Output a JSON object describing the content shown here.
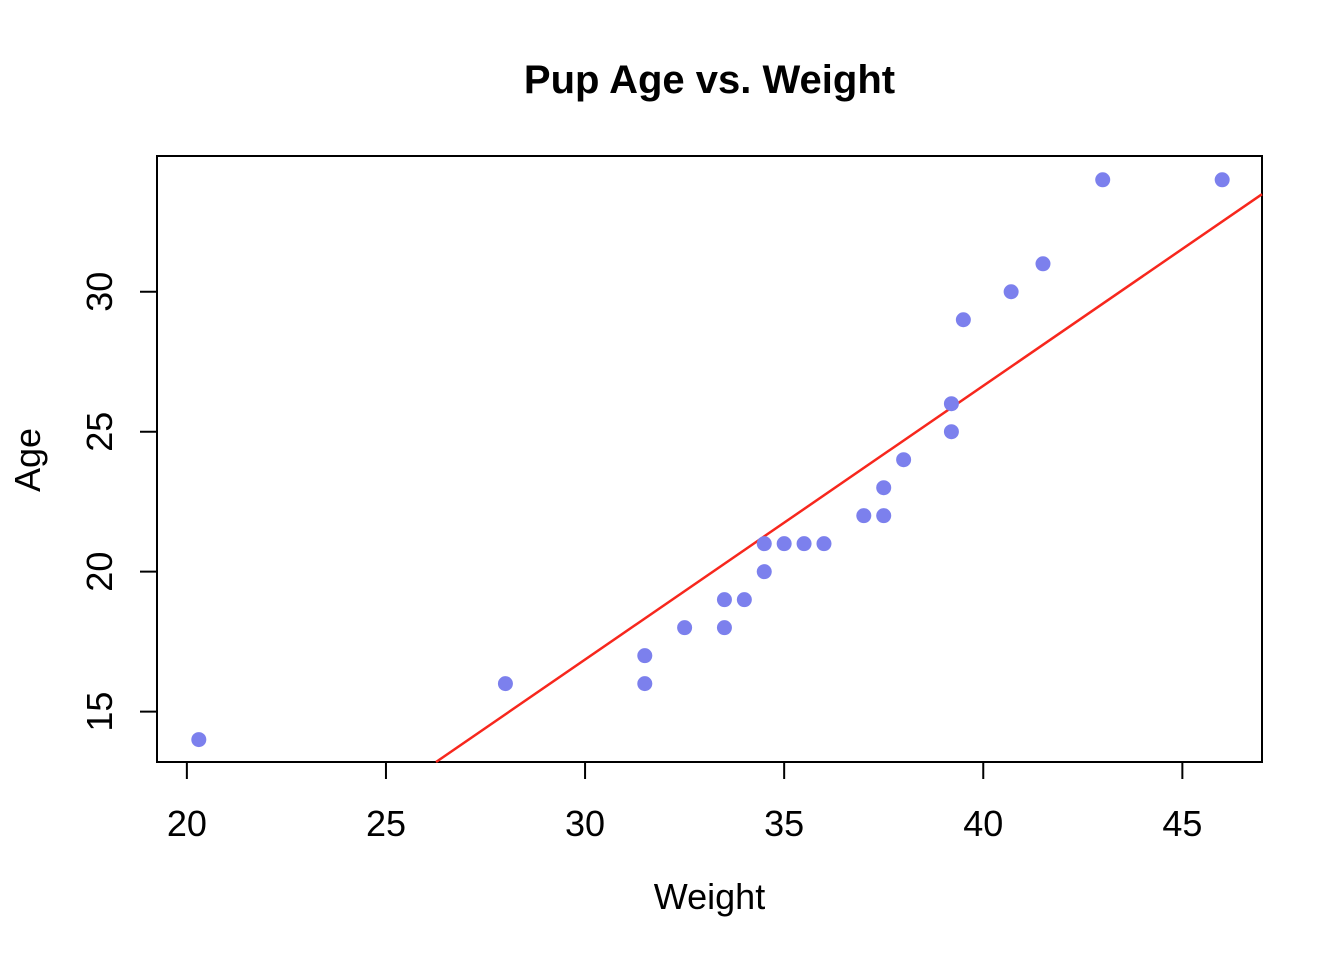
{
  "figure": {
    "background": "#ffffff",
    "axis_color": "#000000"
  },
  "chart_data": {
    "type": "scatter",
    "title": "Pup Age vs. Weight",
    "xlabel": "Weight",
    "ylabel": "Age",
    "xlim": [
      19.25,
      47.0
    ],
    "ylim": [
      13.2,
      34.85
    ],
    "xticks": [
      20,
      25,
      30,
      35,
      40,
      45
    ],
    "yticks": [
      15,
      20,
      25,
      30
    ],
    "grid": false,
    "point_color": "#7C80ED",
    "line_color": "#F7271D",
    "points": [
      [
        20.3,
        14
      ],
      [
        28.0,
        16
      ],
      [
        31.5,
        16
      ],
      [
        31.5,
        17
      ],
      [
        32.5,
        18
      ],
      [
        33.5,
        18
      ],
      [
        33.5,
        19
      ],
      [
        34.0,
        19
      ],
      [
        34.5,
        20
      ],
      [
        34.5,
        21
      ],
      [
        35.0,
        21
      ],
      [
        35.5,
        21
      ],
      [
        36.0,
        21
      ],
      [
        37.0,
        22
      ],
      [
        37.5,
        22
      ],
      [
        37.5,
        23
      ],
      [
        38.0,
        24
      ],
      [
        39.2,
        25
      ],
      [
        39.2,
        26
      ],
      [
        39.5,
        29
      ],
      [
        40.7,
        30
      ],
      [
        41.5,
        31
      ],
      [
        43.0,
        34
      ],
      [
        46.0,
        34
      ]
    ],
    "fit_line": {
      "slope": 0.978,
      "intercept": -12.48
    }
  }
}
